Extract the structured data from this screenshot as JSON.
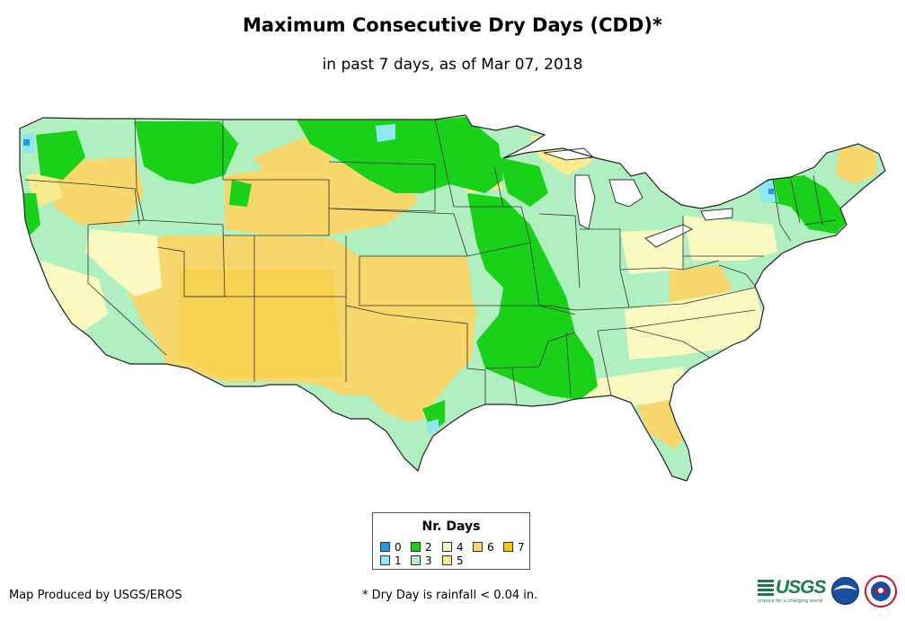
{
  "header": {
    "title": "Maximum Consecutive Dry Days (CDD)*",
    "subtitle": "in past 7 days, as of Mar 07, 2018"
  },
  "map": {
    "region": "Contiguous United States",
    "variable": "Maximum consecutive dry days"
  },
  "legend": {
    "title": "Nr. Days",
    "items": [
      {
        "label": "0",
        "color": "#1f9ce6"
      },
      {
        "label": "1",
        "color": "#8fe6f5"
      },
      {
        "label": "2",
        "color": "#19d119"
      },
      {
        "label": "3",
        "color": "#b0f0c0"
      },
      {
        "label": "4",
        "color": "#fafac0"
      },
      {
        "label": "5",
        "color": "#faeb8c"
      },
      {
        "label": "6",
        "color": "#f7d66b"
      },
      {
        "label": "7",
        "color": "#f5c800"
      }
    ]
  },
  "footer": {
    "credit": "Map Produced by USGS/EROS",
    "footnote": "* Dry Day is rainfall < 0.04 in.",
    "logos": {
      "usgs_text": "USGS",
      "usgs_tagline": "science for a changing world"
    }
  },
  "icons": [
    "usgs-logo",
    "noaa-logo",
    "nws-logo"
  ]
}
